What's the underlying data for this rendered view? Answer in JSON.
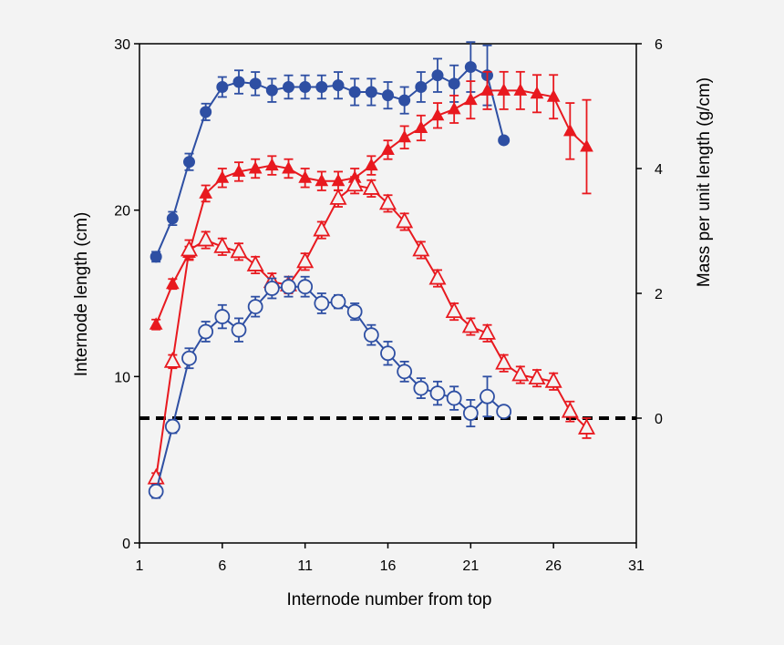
{
  "chart_data": {
    "type": "line",
    "xlabel": "Internode number from top",
    "ylabel": "Internode length (cm)",
    "y2label": "Mass per unit length (g/cm)",
    "xlim": [
      1,
      31
    ],
    "ylim": [
      0,
      30
    ],
    "y2lim": [
      -2,
      6
    ],
    "xticks": [
      "1",
      "6",
      "11",
      "16",
      "21",
      "26",
      "31"
    ],
    "yticks": [
      "0",
      "10",
      "20",
      "30"
    ],
    "y2ticks": [
      "0",
      "2",
      "4",
      "6"
    ],
    "reference_line": {
      "axis": "y2",
      "value": 0,
      "style": "dashed"
    },
    "grid": false,
    "legend": "none",
    "colors": {
      "blue": "#2e4fa3",
      "red": "#e8191f",
      "dashed": "#000000"
    },
    "series": [
      {
        "axis": "y",
        "color": "#2e4fa3",
        "marker": "circle-filled",
        "x": [
          2,
          3,
          4,
          5,
          6,
          7,
          8,
          9,
          10,
          11,
          12,
          13,
          14,
          15,
          16,
          17,
          18,
          19,
          20,
          21,
          22,
          23
        ],
        "y": [
          17.2,
          19.5,
          22.9,
          25.9,
          27.4,
          27.7,
          27.6,
          27.2,
          27.4,
          27.4,
          27.4,
          27.5,
          27.1,
          27.1,
          26.9,
          26.6,
          27.4,
          28.1,
          27.6,
          28.6,
          28.1,
          24.2
        ],
        "err": [
          0.3,
          0.4,
          0.5,
          0.5,
          0.6,
          0.7,
          0.7,
          0.7,
          0.7,
          0.7,
          0.7,
          0.8,
          0.8,
          0.8,
          0.8,
          0.8,
          0.9,
          1.0,
          1.1,
          1.5,
          1.8,
          0
        ]
      },
      {
        "axis": "y2",
        "color": "#e8191f",
        "marker": "triangle-filled",
        "x": [
          2,
          3,
          4,
          5,
          6,
          7,
          8,
          9,
          10,
          11,
          12,
          13,
          14,
          15,
          16,
          17,
          18,
          19,
          20,
          21,
          22,
          23,
          24,
          25,
          26,
          27,
          28
        ],
        "y": [
          1.5,
          2.15,
          2.65,
          3.6,
          3.85,
          3.95,
          4.0,
          4.05,
          4.0,
          3.85,
          3.8,
          3.8,
          3.85,
          4.05,
          4.3,
          4.5,
          4.65,
          4.85,
          4.95,
          5.1,
          5.25,
          5.25,
          5.25,
          5.2,
          5.15,
          4.6,
          4.35
        ],
        "err": [
          0.08,
          0.08,
          0.1,
          0.13,
          0.15,
          0.15,
          0.15,
          0.15,
          0.15,
          0.15,
          0.15,
          0.15,
          0.15,
          0.15,
          0.15,
          0.18,
          0.2,
          0.2,
          0.22,
          0.3,
          0.3,
          0.3,
          0.3,
          0.3,
          0.35,
          0.45,
          0.75
        ]
      },
      {
        "axis": "y",
        "color": "#e8191f",
        "marker": "triangle-open",
        "x": [
          2,
          3,
          4,
          5,
          6,
          7,
          8,
          9,
          10,
          11,
          12,
          13,
          14,
          15,
          16,
          17,
          18,
          19,
          20,
          21,
          22,
          23,
          24,
          25,
          26,
          27,
          28
        ],
        "y": [
          3.9,
          10.9,
          17.6,
          18.2,
          17.8,
          17.5,
          16.7,
          15.7,
          15.5,
          16.9,
          18.8,
          20.7,
          21.5,
          21.3,
          20.4,
          19.3,
          17.6,
          15.9,
          13.9,
          13.0,
          12.6,
          10.8,
          10.1,
          9.9,
          9.7,
          7.9,
          6.9
        ],
        "err": [
          0.3,
          0.4,
          0.6,
          0.5,
          0.5,
          0.5,
          0.5,
          0.5,
          0.5,
          0.5,
          0.5,
          0.5,
          0.5,
          0.5,
          0.5,
          0.5,
          0.5,
          0.5,
          0.5,
          0.5,
          0.5,
          0.5,
          0.5,
          0.5,
          0.5,
          0.6,
          0.6
        ]
      },
      {
        "axis": "y",
        "color": "#2e4fa3",
        "marker": "circle-open",
        "x": [
          2,
          3,
          4,
          5,
          6,
          7,
          8,
          9,
          10,
          11,
          12,
          13,
          14,
          15,
          16,
          17,
          18,
          19,
          20,
          21,
          22,
          23
        ],
        "y": [
          3.1,
          7.0,
          11.1,
          12.7,
          13.6,
          12.8,
          14.2,
          15.3,
          15.4,
          15.4,
          14.4,
          14.5,
          13.9,
          12.5,
          11.4,
          10.3,
          9.3,
          9.0,
          8.7,
          7.8,
          8.8,
          7.9
        ],
        "err": [
          0.4,
          0.4,
          0.6,
          0.6,
          0.7,
          0.7,
          0.6,
          0.6,
          0.6,
          0.6,
          0.6,
          0.4,
          0.5,
          0.6,
          0.7,
          0.6,
          0.6,
          0.7,
          0.7,
          0.8,
          1.2,
          0
        ]
      }
    ]
  }
}
